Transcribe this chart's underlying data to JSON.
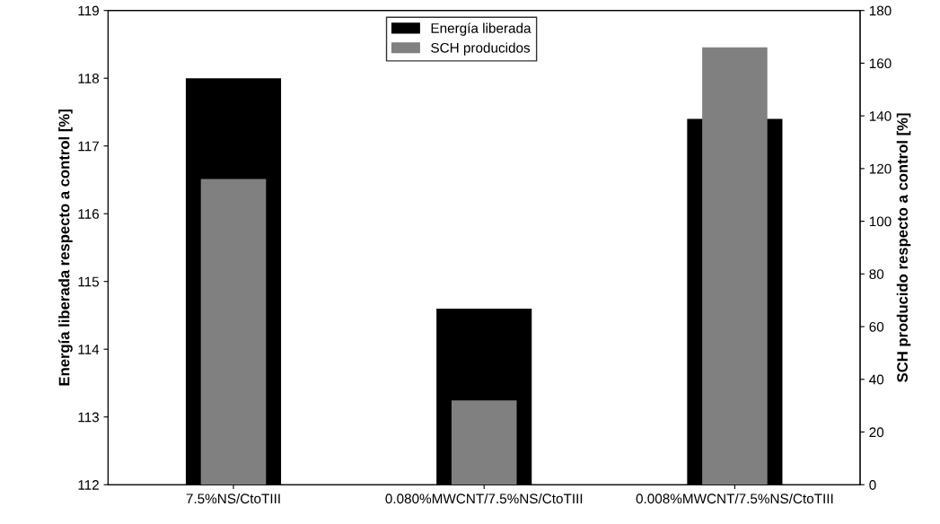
{
  "chart_data": {
    "type": "bar",
    "ylabel": "Energía liberada respecto a control [%]",
    "y2label": "SCH producido respecto a control [%]",
    "categories": [
      "7.5%NS/CtoTIII",
      "0.080%MWCNT/7.5%NS/CtoTIII",
      "0.008%MWCNT/7.5%NS/CtoTIII"
    ],
    "series": [
      {
        "name": "Energía liberada",
        "color": "#000000",
        "values": [
          118.0,
          114.6,
          117.4
        ]
      },
      {
        "name": "SCH producidos",
        "color": "#808080",
        "values": [
          116,
          32,
          166
        ],
        "axis": "y2"
      }
    ],
    "ylim": [
      112,
      119
    ],
    "yticks": [
      112,
      113,
      114,
      115,
      116,
      117,
      118,
      119
    ],
    "y2lim": [
      0,
      180
    ],
    "y2ticks": [
      0,
      20,
      40,
      60,
      80,
      100,
      120,
      140,
      160,
      180
    ],
    "grid": false,
    "legend": "top"
  }
}
